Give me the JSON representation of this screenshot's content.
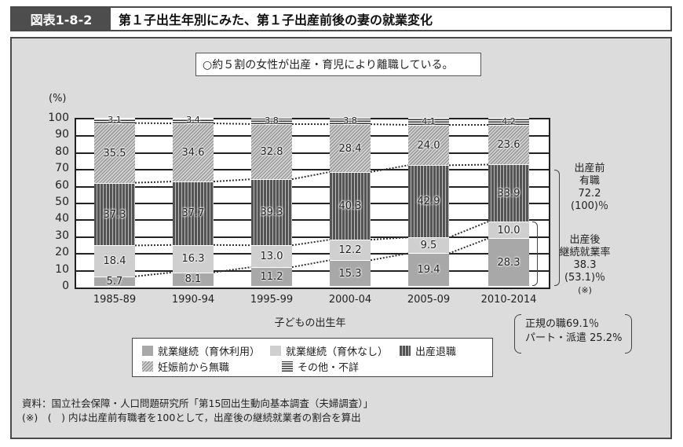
{
  "header": {
    "code": "図表1-8-2",
    "title": "第１子出生年別にみた、第１子出産前後の妻の就業変化"
  },
  "callout": "○約５割の女性が出産・育児により離職している。",
  "chart_data": {
    "type": "bar",
    "stacked": true,
    "title": "第１子出生年別にみた、第１子出産前後の妻の就業変化",
    "xlabel": "子どもの出生年",
    "ylabel": "(%)",
    "ylim": [
      0,
      100
    ],
    "yticks": [
      0,
      10,
      20,
      30,
      40,
      50,
      60,
      70,
      80,
      90,
      100
    ],
    "grid": true,
    "legend_position": "bottom",
    "categories": [
      "1985-89",
      "1990-94",
      "1995-99",
      "2000-04",
      "2005-09",
      "2010-2014"
    ],
    "series": [
      {
        "name": "就業継続（育休利用）",
        "values": [
          5.7,
          8.1,
          11.2,
          15.3,
          19.4,
          28.3
        ],
        "color": "#a8a8a8"
      },
      {
        "name": "就業継続（育休なし）",
        "values": [
          18.4,
          16.3,
          13.0,
          12.2,
          9.5,
          10.0
        ],
        "color": "#cfcfcf"
      },
      {
        "name": "出産退職",
        "values": [
          37.3,
          37.7,
          39.3,
          40.3,
          42.9,
          33.9
        ],
        "color": "#555555"
      },
      {
        "name": "妊娠前から無職",
        "values": [
          35.5,
          34.6,
          32.8,
          28.4,
          24.0,
          23.6
        ],
        "color": "#b8b8b8"
      },
      {
        "name": "その他・不詳",
        "values": [
          3.1,
          3.4,
          3.8,
          3.8,
          4.1,
          4.2
        ],
        "color": "#333333"
      }
    ],
    "annotations": [
      {
        "label": "出産前有職",
        "value": "72.2",
        "sub": "(100)％"
      },
      {
        "label": "出産後継続就業率",
        "value": "38.3",
        "sub": "(53.1)％",
        "note": "(※)"
      },
      {
        "text": "正規の職69.1％"
      },
      {
        "text": "パート・派遣 25.2%"
      }
    ]
  },
  "y_axis": {
    "unit": "(%)",
    "ticks": [
      "100",
      "90",
      "80",
      "70",
      "60",
      "50",
      "40",
      "30",
      "20",
      "10",
      "0"
    ]
  },
  "x_axis": {
    "label": "子どもの出生年",
    "ticks": [
      "1985-89",
      "1990-94",
      "1995-99",
      "2000-04",
      "2005-09",
      "2010-2014"
    ]
  },
  "bars": [
    {
      "seg": [
        "5.7",
        "18.4",
        "37.3",
        "35.5",
        "3.1"
      ]
    },
    {
      "seg": [
        "8.1",
        "16.3",
        "37.7",
        "34.6",
        "3.4"
      ]
    },
    {
      "seg": [
        "11.2",
        "13.0",
        "39.3",
        "32.8",
        "3.8"
      ]
    },
    {
      "seg": [
        "15.3",
        "12.2",
        "40.3",
        "28.4",
        "3.8"
      ]
    },
    {
      "seg": [
        "19.4",
        "9.5",
        "42.9",
        "24.0",
        "4.1"
      ]
    },
    {
      "seg": [
        "28.3",
        "10.0",
        "33.9",
        "23.6",
        "4.2"
      ]
    }
  ],
  "side": {
    "before": {
      "l1": "出産前",
      "l2": "有職",
      "l3": "72.2",
      "l4": "(100)％"
    },
    "after": {
      "l1": "出産後",
      "l2": "継続就業率",
      "l3": "38.3",
      "l4": "(53.1)％",
      "l5": "(※)"
    }
  },
  "note_box": {
    "line1": "正規の職69.1％",
    "line2": "パート・派遣 25.2%"
  },
  "legend": {
    "items": [
      "就業継続（育休利用）",
      "就業継続（育休なし）",
      "出産退職",
      "妊娠前から無職",
      "その他・不詳"
    ]
  },
  "source": {
    "line1": "資料：国立社会保障・人口問題研究所「第15回出生動向基本調査（夫婦調査）」",
    "line2": "(※)　(　) 内は出産前有職者を100として，出産後の継続就業者の割合を算出"
  }
}
